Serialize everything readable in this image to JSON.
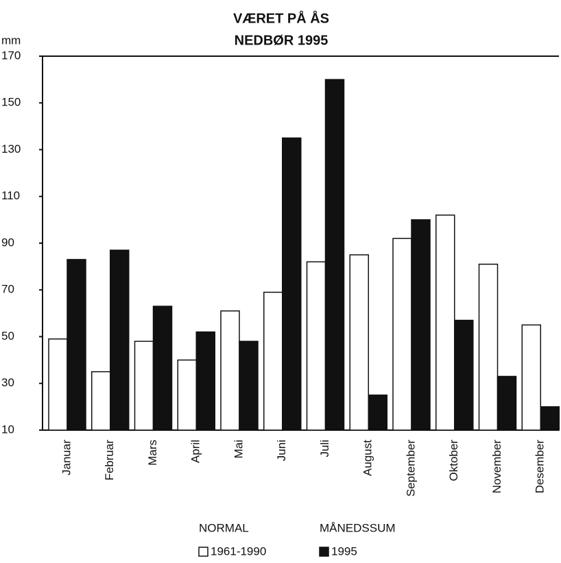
{
  "chart_data": {
    "type": "bar",
    "title": [
      "VÆRET PÅ ÅS",
      "NEDBØR 1995"
    ],
    "y_label": "mm",
    "categories": [
      "Januar",
      "Februar",
      "Mars",
      "April",
      "Mai",
      "Juni",
      "Juli",
      "August",
      "September",
      "Oktober",
      "November",
      "Desember"
    ],
    "series": [
      {
        "name": "1961-1990",
        "legend_header": "NORMAL",
        "color": "#ffffff",
        "values": [
          49,
          35,
          48,
          40,
          61,
          69,
          82,
          85,
          92,
          102,
          81,
          55
        ]
      },
      {
        "name": "1995",
        "legend_header": "MÅNEDSSUM",
        "color": "#111111",
        "values": [
          83,
          87,
          63,
          52,
          48,
          135,
          160,
          25,
          100,
          57,
          33,
          20
        ]
      }
    ],
    "ylim": [
      10,
      170
    ],
    "yticks": [
      10,
      30,
      50,
      70,
      90,
      110,
      130,
      150,
      170
    ]
  }
}
